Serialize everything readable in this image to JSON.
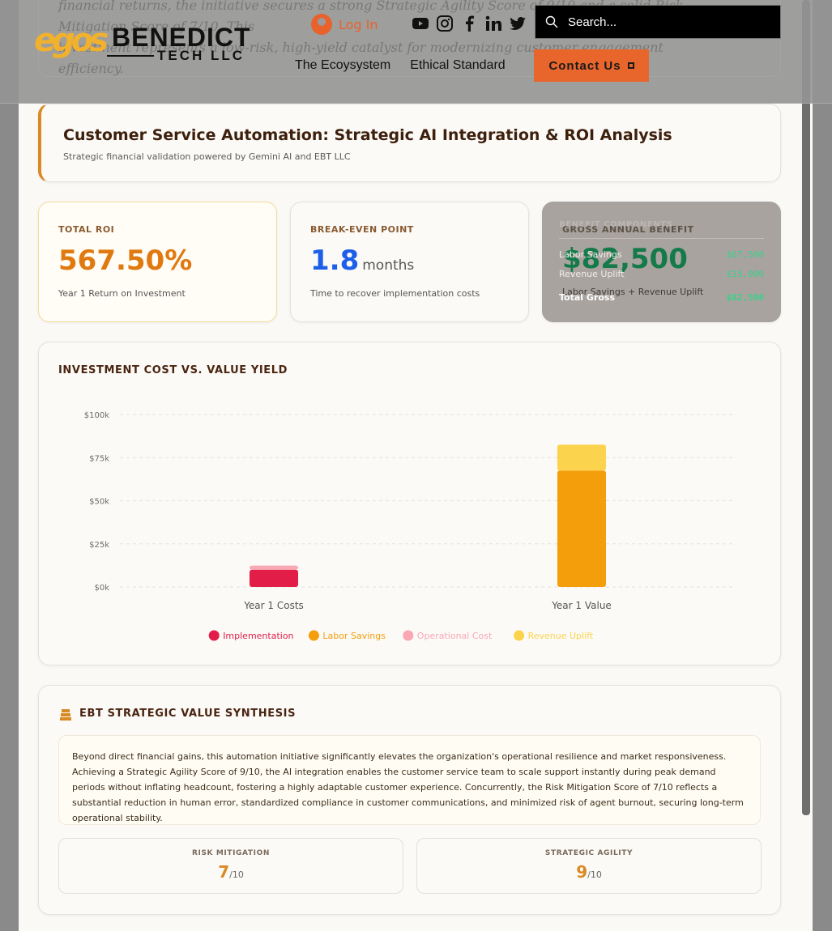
{
  "header": {
    "ghost_line1": "financial returns, the initiative secures a strong Strategic Agility Score of 9/10 and a solid Risk Mitigation Score of 7/10. This",
    "ghost_line2": "investment represents a low-risk, high-yield catalyst for modernizing customer engagement",
    "ghost_line3": "efficiency.",
    "logo_mark": "egos",
    "logo_name": "BENEDICT",
    "logo_sub": "TECH LLC",
    "login_label": "Log In",
    "search_placeholder": "Search...",
    "nav": [
      "The Ecoysystem",
      "Ethical Standard"
    ],
    "contact_label": "Contact Us"
  },
  "title": {
    "heading": "Customer Service Automation: Strategic AI Integration & ROI Analysis",
    "subtitle": "Strategic financial validation powered by Gemini AI and EBT LLC"
  },
  "metrics": {
    "roi": {
      "label": "TOTAL ROI",
      "value": "567.50%",
      "sub": "Year 1 Return on Investment"
    },
    "breakeven": {
      "label": "BREAK-EVEN POINT",
      "value": "1.8",
      "unit": "months",
      "sub": "Time to recover implementation costs"
    },
    "gross": {
      "label": "GROSS ANNUAL BENEFIT",
      "value": "$82,500",
      "sub": "Labor Savings + Revenue Uplift",
      "tooltip_title": "BENEFIT COMPONENTS",
      "components": [
        {
          "name": "Labor Savings",
          "amount": "$67,500"
        },
        {
          "name": "Revenue Uplift",
          "amount": "$15,000"
        },
        {
          "name": "Total Gross",
          "amount": "$82,500"
        }
      ]
    }
  },
  "chart_data": {
    "type": "bar",
    "title": "INVESTMENT COST VS. VALUE YIELD",
    "stacked": true,
    "categories": [
      "Year 1 Costs",
      "Year 1 Value"
    ],
    "series": [
      {
        "name": "Implementation",
        "color": "#e11d48",
        "values": [
          10000,
          0
        ]
      },
      {
        "name": "Labor Savings",
        "color": "#f59e0b",
        "values": [
          0,
          67500
        ]
      },
      {
        "name": "Operational Cost",
        "color": "#f9a8b4",
        "values": [
          2360,
          0
        ]
      },
      {
        "name": "Revenue Uplift",
        "color": "#fcd34d",
        "values": [
          0,
          15000
        ]
      }
    ],
    "ylim": [
      0,
      100000
    ],
    "yticks": [
      0,
      25000,
      50000,
      75000,
      100000
    ],
    "ytick_labels": [
      "$0k",
      "$25k",
      "$50k",
      "$75k",
      "$100k"
    ],
    "grid": true,
    "legend_position": "bottom"
  },
  "synthesis": {
    "title": "EBT STRATEGIC VALUE SYNTHESIS",
    "body": "Beyond direct financial gains, this automation initiative significantly elevates the organization's operational resilience and market responsiveness. Achieving a Strategic Agility Score of 9/10, the AI integration enables the customer service team to scale support instantly during peak demand periods without inflating headcount, fostering a highly adaptable customer experience. Concurrently, the Risk Mitigation Score of 7/10 reflects a substantial reduction in human error, standardized compliance in customer communications, and minimized risk of agent burnout, securing long-term operational stability.",
    "scores": [
      {
        "label": "RISK MITIGATION",
        "value": "7",
        "max": "/10"
      },
      {
        "label": "STRATEGIC AGILITY",
        "value": "9",
        "max": "/10"
      }
    ]
  }
}
